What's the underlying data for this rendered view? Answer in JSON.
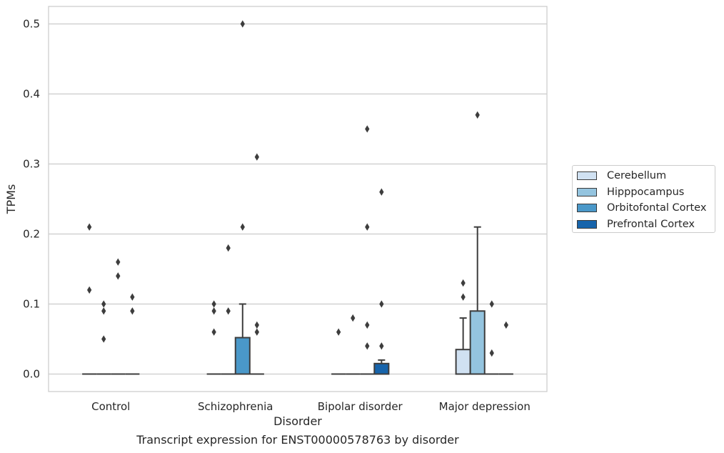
{
  "chart_data": {
    "type": "box",
    "xlabel": "Disorder",
    "ylabel": "TPMs",
    "caption": "Transcript expression for ENST00000578763 by disorder",
    "categories": [
      "Control",
      "Schizophrenia",
      "Bipolar disorder",
      "Major depression"
    ],
    "ylim": [
      -0.025,
      0.525
    ],
    "yticks": [
      "0.0",
      "0.1",
      "0.2",
      "0.3",
      "0.4",
      "0.5"
    ],
    "ytick_values": [
      0.0,
      0.1,
      0.2,
      0.3,
      0.4,
      0.5
    ],
    "grid": true,
    "legend_position": "right",
    "series": [
      {
        "name": "Cerebellum",
        "color": "#d0e1f2",
        "boxes": [
          {
            "q1": 0,
            "median": 0,
            "q3": 0,
            "whisker_low": 0,
            "whisker_high": 0,
            "outliers": [
              0.21,
              0.12
            ]
          },
          {
            "q1": 0,
            "median": 0,
            "q3": 0,
            "whisker_low": 0,
            "whisker_high": 0,
            "outliers": [
              0.1,
              0.09,
              0.06
            ]
          },
          {
            "q1": 0,
            "median": 0,
            "q3": 0,
            "whisker_low": 0,
            "whisker_high": 0,
            "outliers": [
              0.06
            ]
          },
          {
            "q1": 0,
            "median": 0,
            "q3": 0.035,
            "whisker_low": 0,
            "whisker_high": 0.08,
            "outliers": [
              0.13,
              0.11
            ]
          }
        ]
      },
      {
        "name": "Hipppocampus",
        "color": "#94c4df",
        "boxes": [
          {
            "q1": 0,
            "median": 0,
            "q3": 0,
            "whisker_low": 0,
            "whisker_high": 0,
            "outliers": [
              0.1,
              0.09,
              0.05
            ]
          },
          {
            "q1": 0,
            "median": 0,
            "q3": 0,
            "whisker_low": 0,
            "whisker_high": 0,
            "outliers": [
              0.18,
              0.09
            ]
          },
          {
            "q1": 0,
            "median": 0,
            "q3": 0,
            "whisker_low": 0,
            "whisker_high": 0,
            "outliers": [
              0.08
            ]
          },
          {
            "q1": 0,
            "median": 0,
            "q3": 0.09,
            "whisker_low": 0,
            "whisker_high": 0.21,
            "outliers": [
              0.37
            ]
          }
        ]
      },
      {
        "name": "Orbitofontal Cortex",
        "color": "#4a98c9",
        "boxes": [
          {
            "q1": 0,
            "median": 0,
            "q3": 0,
            "whisker_low": 0,
            "whisker_high": 0,
            "outliers": [
              0.16,
              0.14
            ]
          },
          {
            "q1": 0,
            "median": 0,
            "q3": 0.052,
            "whisker_low": 0,
            "whisker_high": 0.1,
            "outliers": [
              0.5,
              0.21
            ]
          },
          {
            "q1": 0,
            "median": 0,
            "q3": 0,
            "whisker_low": 0,
            "whisker_high": 0,
            "outliers": [
              0.35,
              0.21,
              0.07,
              0.04
            ]
          },
          {
            "q1": 0,
            "median": 0,
            "q3": 0,
            "whisker_low": 0,
            "whisker_high": 0,
            "outliers": [
              0.1,
              0.03
            ]
          }
        ]
      },
      {
        "name": "Prefrontal Cortex",
        "color": "#1764ab",
        "boxes": [
          {
            "q1": 0,
            "median": 0,
            "q3": 0,
            "whisker_low": 0,
            "whisker_high": 0,
            "outliers": [
              0.11,
              0.09
            ]
          },
          {
            "q1": 0,
            "median": 0,
            "q3": 0,
            "whisker_low": 0,
            "whisker_high": 0,
            "outliers": [
              0.31,
              0.07,
              0.06
            ]
          },
          {
            "q1": 0,
            "median": 0,
            "q3": 0.015,
            "whisker_low": 0,
            "whisker_high": 0.02,
            "outliers": [
              0.26,
              0.1,
              0.04
            ]
          },
          {
            "q1": 0,
            "median": 0,
            "q3": 0,
            "whisker_low": 0,
            "whisker_high": 0,
            "outliers": [
              0.07
            ]
          }
        ]
      }
    ]
  }
}
